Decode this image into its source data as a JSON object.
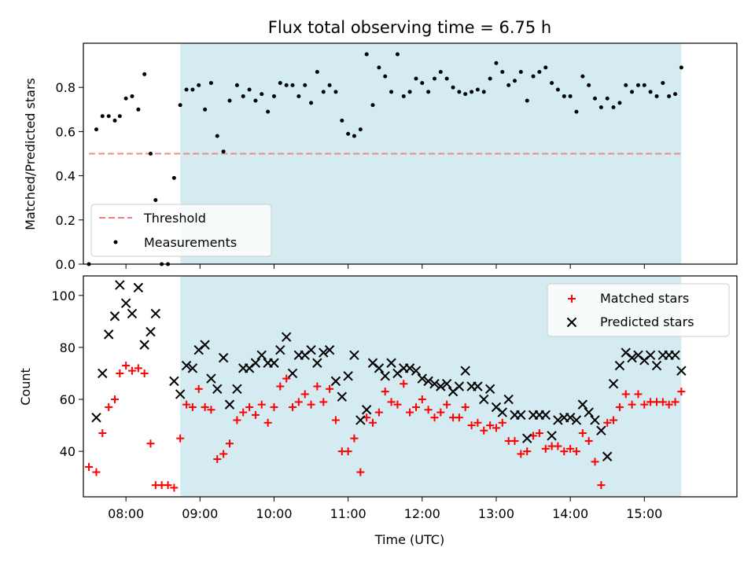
{
  "colors": {
    "shade": "#d4ebf1",
    "threshold": "#f08080",
    "measurement": "#000000",
    "matched": "#ff0000",
    "predicted": "#000000"
  },
  "chart_data": [
    {
      "type": "scatter",
      "title": "Flux total observing time = 6.75 h",
      "xlabel": "",
      "ylabel": "Matched/Predicted stars",
      "xlim": [
        7.425,
        16.25
      ],
      "ylim": [
        0,
        1.0
      ],
      "yticks": [
        0.0,
        0.2,
        0.4,
        0.6,
        0.8
      ],
      "ytick_labels": [
        "0.0",
        "0.2",
        "0.4",
        "0.6",
        "0.8"
      ],
      "shaded_span": [
        8.733,
        15.5
      ],
      "threshold": {
        "label": "Threshold",
        "value": 0.5,
        "x_range": [
          7.5,
          15.5
        ]
      },
      "legend": {
        "position": "lower-left",
        "entries": [
          "Threshold",
          "Measurements"
        ]
      },
      "series": [
        {
          "name": "Measurements",
          "x": [
            7.5,
            7.6,
            7.683,
            7.767,
            7.85,
            7.917,
            8.0,
            8.083,
            8.167,
            8.25,
            8.333,
            8.4,
            8.483,
            8.567,
            8.65,
            8.733,
            8.817,
            8.9,
            8.983,
            9.067,
            9.15,
            9.233,
            9.317,
            9.4,
            9.5,
            9.583,
            9.667,
            9.75,
            9.833,
            9.917,
            10.0,
            10.083,
            10.167,
            10.25,
            10.333,
            10.417,
            10.5,
            10.583,
            10.667,
            10.75,
            10.833,
            10.917,
            11.0,
            11.083,
            11.167,
            11.25,
            11.333,
            11.417,
            11.5,
            11.583,
            11.667,
            11.75,
            11.833,
            11.917,
            12.0,
            12.083,
            12.167,
            12.25,
            12.333,
            12.417,
            12.5,
            12.583,
            12.667,
            12.75,
            12.833,
            12.917,
            13.0,
            13.083,
            13.167,
            13.25,
            13.333,
            13.417,
            13.5,
            13.583,
            13.667,
            13.75,
            13.833,
            13.917,
            14.0,
            14.083,
            14.167,
            14.25,
            14.333,
            14.417,
            14.5,
            14.583,
            14.667,
            14.75,
            14.833,
            14.917,
            15.0,
            15.083,
            15.167,
            15.25,
            15.333,
            15.417,
            15.5
          ],
          "values": [
            0.0,
            0.61,
            0.67,
            0.67,
            0.65,
            0.67,
            0.75,
            0.76,
            0.7,
            0.86,
            0.5,
            0.29,
            0.0,
            0.0,
            0.39,
            0.72,
            0.79,
            0.79,
            0.81,
            0.7,
            0.82,
            0.58,
            0.51,
            0.74,
            0.81,
            0.76,
            0.79,
            0.74,
            0.77,
            0.69,
            0.76,
            0.82,
            0.81,
            0.81,
            0.76,
            0.81,
            0.73,
            0.87,
            0.78,
            0.81,
            0.78,
            0.65,
            0.59,
            0.58,
            0.61,
            0.95,
            0.72,
            0.89,
            0.85,
            0.78,
            0.95,
            0.76,
            0.78,
            0.84,
            0.82,
            0.78,
            0.84,
            0.87,
            0.84,
            0.8,
            0.78,
            0.77,
            0.78,
            0.79,
            0.78,
            0.84,
            0.91,
            0.87,
            0.81,
            0.83,
            0.87,
            0.74,
            0.85,
            0.87,
            0.89,
            0.82,
            0.79,
            0.76,
            0.76,
            0.69,
            0.85,
            0.81,
            0.75,
            0.71,
            0.75,
            0.71,
            0.73,
            0.81,
            0.78,
            0.81,
            0.81,
            0.78,
            0.76,
            0.82,
            0.76,
            0.77,
            0.89
          ]
        }
      ]
    },
    {
      "type": "scatter",
      "title": "",
      "xlabel": "Time (UTC)",
      "ylabel": "Count",
      "xlim": [
        7.425,
        16.25
      ],
      "ylim": [
        22.5,
        107.5
      ],
      "yticks": [
        40,
        60,
        80,
        100
      ],
      "ytick_labels": [
        "40",
        "60",
        "80",
        "100"
      ],
      "xticks": [
        8,
        9,
        10,
        11,
        12,
        13,
        14,
        15
      ],
      "xtick_labels": [
        "08:00",
        "09:00",
        "10:00",
        "11:00",
        "12:00",
        "13:00",
        "14:00",
        "15:00"
      ],
      "shaded_span": [
        8.733,
        15.5
      ],
      "legend": {
        "position": "top-right",
        "entries": [
          "Matched stars",
          "Predicted stars"
        ]
      },
      "x": [
        7.5,
        7.6,
        7.683,
        7.767,
        7.85,
        7.917,
        8.0,
        8.083,
        8.167,
        8.25,
        8.333,
        8.4,
        8.483,
        8.567,
        8.65,
        8.733,
        8.817,
        8.9,
        8.983,
        9.067,
        9.15,
        9.233,
        9.317,
        9.4,
        9.5,
        9.583,
        9.667,
        9.75,
        9.833,
        9.917,
        10.0,
        10.083,
        10.167,
        10.25,
        10.333,
        10.417,
        10.5,
        10.583,
        10.667,
        10.75,
        10.833,
        10.917,
        11.0,
        11.083,
        11.167,
        11.25,
        11.333,
        11.417,
        11.5,
        11.583,
        11.667,
        11.75,
        11.833,
        11.917,
        12.0,
        12.083,
        12.167,
        12.25,
        12.333,
        12.417,
        12.5,
        12.583,
        12.667,
        12.75,
        12.833,
        12.917,
        13.0,
        13.083,
        13.167,
        13.25,
        13.333,
        13.417,
        13.5,
        13.583,
        13.667,
        13.75,
        13.833,
        13.917,
        14.0,
        14.083,
        14.167,
        14.25,
        14.333,
        14.417,
        14.5,
        14.583,
        14.667,
        14.75,
        14.833,
        14.917,
        15.0,
        15.083,
        15.167,
        15.25,
        15.333,
        15.417,
        15.5
      ],
      "series": [
        {
          "name": "Matched stars",
          "marker": "plus",
          "values": [
            34,
            32,
            47,
            57,
            60,
            70,
            73,
            71,
            72,
            70,
            43,
            27,
            27,
            27,
            26,
            45,
            58,
            57,
            64,
            57,
            56,
            37,
            39,
            43,
            52,
            55,
            57,
            54,
            58,
            51,
            57,
            65,
            68,
            57,
            59,
            62,
            58,
            65,
            59,
            64,
            52,
            40,
            40,
            45,
            32,
            53,
            51,
            55,
            63,
            59,
            58,
            66,
            55,
            57,
            60,
            56,
            53,
            55,
            58,
            53,
            53,
            57,
            50,
            51,
            48,
            50,
            49,
            51,
            44,
            44,
            39,
            40,
            46,
            47,
            41,
            42,
            42,
            40,
            41,
            40,
            47,
            44,
            36,
            27,
            51,
            52,
            57,
            62,
            58,
            62,
            58,
            59,
            59,
            59,
            58,
            59,
            63
          ]
        },
        {
          "name": "Predicted stars",
          "marker": "x",
          "values": [
            null,
            53,
            70,
            85,
            92,
            104,
            97,
            93,
            103,
            81,
            86,
            93,
            null,
            null,
            67,
            62,
            73,
            72,
            79,
            81,
            68,
            64,
            76,
            58,
            64,
            72,
            72,
            74,
            77,
            74,
            74,
            79,
            84,
            70,
            77,
            77,
            79,
            74,
            78,
            79,
            67,
            61,
            69,
            77,
            52,
            56,
            74,
            72,
            69,
            74,
            70,
            72,
            72,
            71,
            68,
            67,
            66,
            65,
            66,
            63,
            65,
            71,
            65,
            65,
            60,
            64,
            57,
            55,
            60,
            54,
            54,
            45,
            54,
            54,
            54,
            46,
            52,
            53,
            53,
            52,
            58,
            55,
            52,
            48,
            38,
            66,
            73,
            78,
            76,
            77,
            75,
            77,
            73,
            77,
            77,
            77,
            71
          ]
        }
      ]
    }
  ]
}
